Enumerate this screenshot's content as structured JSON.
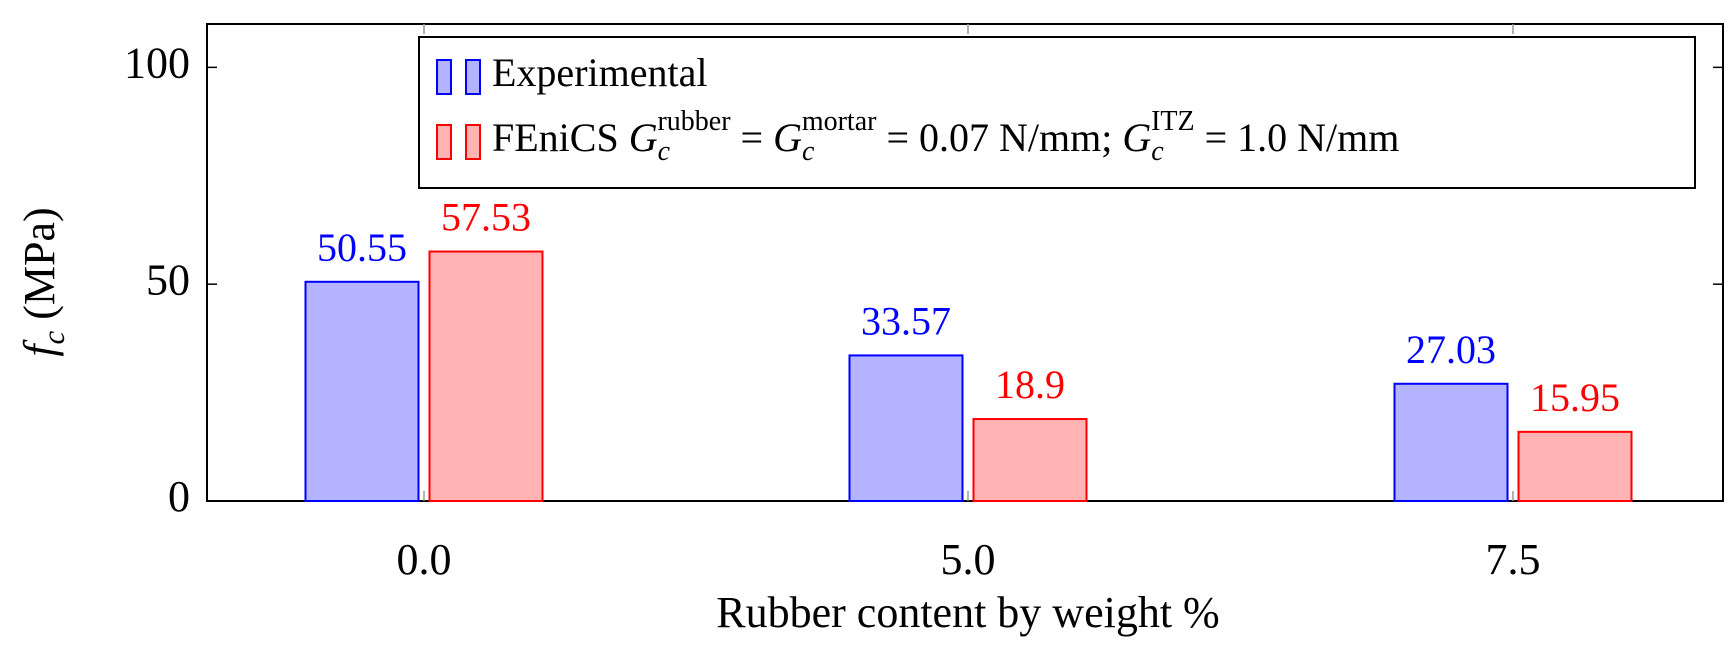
{
  "chart_data": {
    "type": "bar",
    "categories": [
      "0.0",
      "5.0",
      "7.5"
    ],
    "x_label": "Rubber content by weight %",
    "y_label": "f_c (MPa)",
    "series": [
      {
        "name": "Experimental",
        "color": "#0000ff",
        "fill": "#b3b3ff",
        "values": [
          50.55,
          33.57,
          27.03
        ]
      },
      {
        "name": "FEniCS G_c^{rubber} = G_c^{mortar} = 0.07 N/mm; G_c^{ITZ} = 1.0 N/mm",
        "color": "#ff0000",
        "fill": "#ffb3b3",
        "values": [
          57.53,
          18.9,
          15.95
        ]
      }
    ],
    "ylim": [
      0,
      110
    ],
    "yticks": [
      0,
      50,
      100
    ],
    "grid": false
  }
}
